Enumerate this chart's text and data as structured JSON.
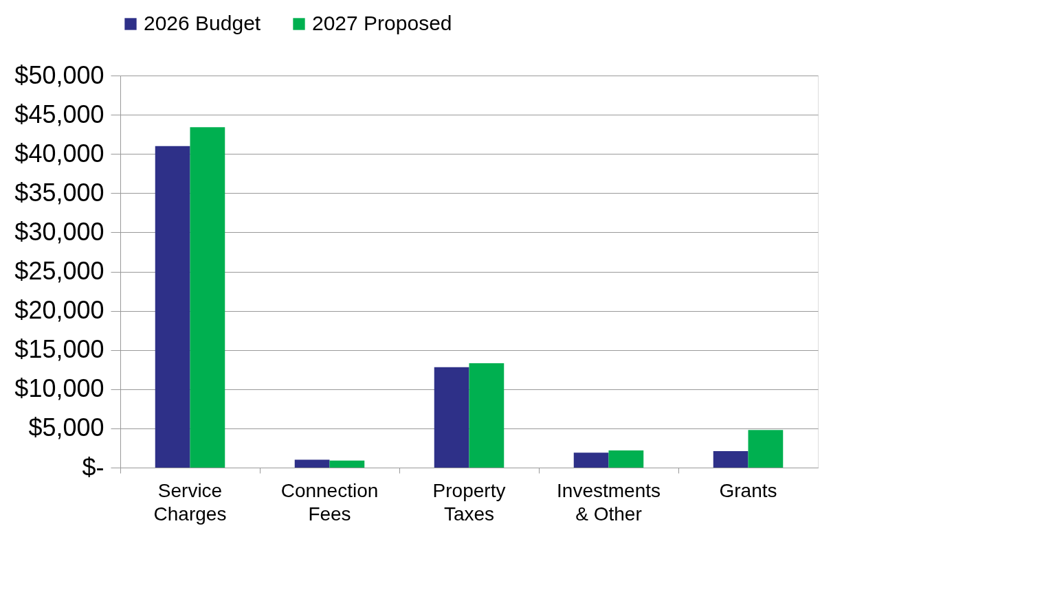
{
  "chart_data": {
    "type": "bar",
    "categories": [
      "Service Charges",
      "Connection Fees",
      "Property Taxes",
      "Investments & Other",
      "Grants"
    ],
    "series": [
      {
        "name": "2026 Budget",
        "color": "#2e3088",
        "values": [
          41000,
          1000,
          12800,
          1900,
          2100
        ]
      },
      {
        "name": "2027 Proposed",
        "color": "#00b050",
        "values": [
          43400,
          900,
          13300,
          2200,
          4800
        ]
      }
    ],
    "ylim": [
      0,
      50000
    ],
    "yticks": [
      {
        "value": 0,
        "label": "$-"
      },
      {
        "value": 5000,
        "label": "$5,000"
      },
      {
        "value": 10000,
        "label": "$10,000"
      },
      {
        "value": 15000,
        "label": "$15,000"
      },
      {
        "value": 20000,
        "label": "$20,000"
      },
      {
        "value": 25000,
        "label": "$25,000"
      },
      {
        "value": 30000,
        "label": "$30,000"
      },
      {
        "value": 35000,
        "label": "$35,000"
      },
      {
        "value": 40000,
        "label": "$40,000"
      },
      {
        "value": 45000,
        "label": "$45,000"
      },
      {
        "value": 50000,
        "label": "$50,000"
      }
    ],
    "grid": "y",
    "legend": "top"
  }
}
